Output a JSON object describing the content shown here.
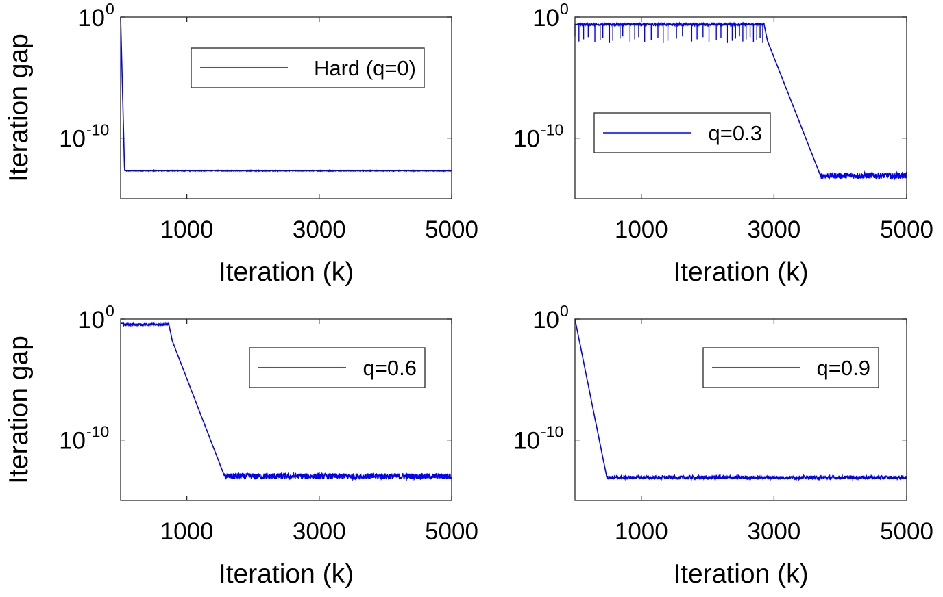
{
  "figure": {
    "x_ticks": [
      "1000",
      "3000",
      "5000"
    ]
  },
  "chart_data": [
    {
      "type": "line",
      "title": "",
      "xlabel": "Iteration (k)",
      "ylabel": "Iteration gap",
      "xlim": [
        0,
        5000
      ],
      "yscale": "log",
      "ylim_exp": [
        -15,
        0
      ],
      "yticks": [
        {
          "base": "10",
          "exp": "0"
        },
        {
          "base": "10",
          "exp": "-10"
        }
      ],
      "legend_position": "top-right",
      "line_color": "#0000ff",
      "series": [
        {
          "name": "Hard (q=0)",
          "shape": "drop",
          "start_log": 0,
          "drop_end_k": 60,
          "floor_log": -12.7,
          "floor_noise": 0.03,
          "plateau_log": null,
          "plateau_end_k": null,
          "spikes": []
        }
      ]
    },
    {
      "type": "line",
      "title": "",
      "xlabel": "Iteration (k)",
      "ylabel": "",
      "xlim": [
        0,
        5000
      ],
      "yscale": "log",
      "ylim_exp": [
        -15,
        0
      ],
      "yticks": [
        {
          "base": "10",
          "exp": "0"
        },
        {
          "base": "10",
          "exp": "-10"
        }
      ],
      "legend_position": "middle-left",
      "line_color": "#0000ff",
      "series": [
        {
          "name": "q=0.3",
          "shape": "plateau-drop",
          "start_log": -0.6,
          "plateau_log": -0.6,
          "plateau_end_k": 2850,
          "drop_end_k": 3700,
          "floor_log": -13.1,
          "floor_noise": 0.25,
          "spikes": [
            0,
            60,
            130,
            200,
            300,
            380,
            420,
            520,
            570,
            680,
            720,
            830,
            900,
            960,
            1050,
            1150,
            1250,
            1330,
            1400,
            1530,
            1620,
            1760,
            1840,
            1930,
            2020,
            2130,
            2200,
            2300,
            2370,
            2420,
            2480,
            2530,
            2580,
            2640,
            2690,
            2740,
            2790,
            2830
          ]
        }
      ]
    },
    {
      "type": "line",
      "title": "",
      "xlabel": "Iteration (k)",
      "ylabel": "Iteration gap",
      "xlim": [
        0,
        5000
      ],
      "yscale": "log",
      "ylim_exp": [
        -15,
        0
      ],
      "yticks": [
        {
          "base": "10",
          "exp": "0"
        },
        {
          "base": "10",
          "exp": "-10"
        }
      ],
      "legend_position": "top-right",
      "line_color": "#0000ff",
      "series": [
        {
          "name": "q=0.6",
          "shape": "plateau-drop",
          "start_log": -0.35,
          "plateau_log": -0.45,
          "plateau_end_k": 730,
          "drop_end_k": 1570,
          "floor_log": -13,
          "floor_noise": 0.25,
          "spikes": []
        }
      ]
    },
    {
      "type": "line",
      "title": "",
      "xlabel": "Iteration (k)",
      "ylabel": "",
      "xlim": [
        0,
        5000
      ],
      "yscale": "log",
      "ylim_exp": [
        -15,
        0
      ],
      "yticks": [
        {
          "base": "10",
          "exp": "0"
        },
        {
          "base": "10",
          "exp": "-10"
        }
      ],
      "legend_position": "top-right",
      "line_color": "#0000ff",
      "series": [
        {
          "name": "q=0.9",
          "shape": "drop",
          "start_log": 0,
          "drop_end_k": 480,
          "floor_log": -13.1,
          "floor_noise": 0.15,
          "plateau_log": null,
          "plateau_end_k": null,
          "spikes": []
        }
      ]
    }
  ]
}
